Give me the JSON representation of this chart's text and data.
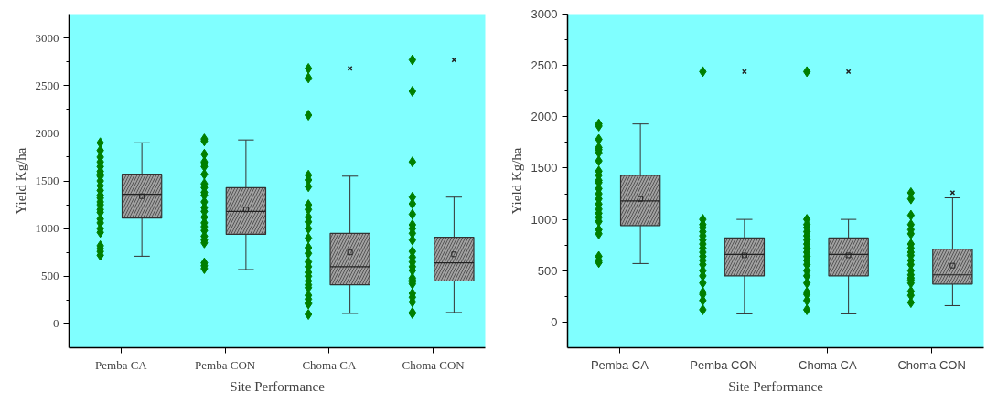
{
  "chart_data": [
    {
      "type": "box",
      "xlabel": "Site Performance",
      "ylabel": "Yield Kg/ha",
      "categories": [
        "Pemba CA",
        "Pemba CON",
        "Choma CA",
        "Choma CON"
      ],
      "ylim": [
        -250,
        3250
      ],
      "yticks": [
        0,
        500,
        1000,
        1500,
        2000,
        2500,
        3000
      ],
      "grid": false,
      "series": [
        {
          "color": "#a0a0a0",
          "boxes": [
            {
              "low": 710,
              "q1": 1110,
              "median": 1360,
              "q3": 1570,
              "high": 1900,
              "mean": 1340
            },
            {
              "low": 570,
              "q1": 940,
              "median": 1180,
              "q3": 1430,
              "high": 1930,
              "mean": 1200
            },
            {
              "low": 110,
              "q1": 410,
              "median": 600,
              "q3": 950,
              "high": 1550,
              "mean": 750,
              "outliers": [
                2680
              ]
            },
            {
              "low": 120,
              "q1": 450,
              "median": 640,
              "q3": 910,
              "high": 1330,
              "mean": 730,
              "outliers": [
                2770
              ]
            }
          ]
        },
        {
          "type": "scatter",
          "color": "#007f00",
          "marker": "diamond",
          "x": [
            "Pemba CA",
            "Pemba CA",
            "Pemba CA",
            "Pemba CA",
            "Pemba CA",
            "Pemba CA",
            "Pemba CA",
            "Pemba CA",
            "Pemba CA",
            "Pemba CA",
            "Pemba CA",
            "Pemba CA",
            "Pemba CA",
            "Pemba CA",
            "Pemba CA",
            "Pemba CA",
            "Pemba CA",
            "Pemba CA",
            "Pemba CA",
            "Pemba CA",
            "Pemba CA",
            "Pemba CA",
            "Pemba CA",
            "Pemba CA",
            "Pemba CA",
            "Pemba CON",
            "Pemba CON",
            "Pemba CON",
            "Pemba CON",
            "Pemba CON",
            "Pemba CON",
            "Pemba CON",
            "Pemba CON",
            "Pemba CON",
            "Pemba CON",
            "Pemba CON",
            "Pemba CON",
            "Pemba CON",
            "Pemba CON",
            "Pemba CON",
            "Pemba CON",
            "Pemba CON",
            "Pemba CON",
            "Pemba CON",
            "Pemba CON",
            "Pemba CON",
            "Pemba CON",
            "Pemba CON",
            "Pemba CON",
            "Choma CA",
            "Choma CA",
            "Choma CA",
            "Choma CA",
            "Choma CA",
            "Choma CA",
            "Choma CA",
            "Choma CA",
            "Choma CA",
            "Choma CA",
            "Choma CA",
            "Choma CA",
            "Choma CA",
            "Choma CA",
            "Choma CA",
            "Choma CA",
            "Choma CA",
            "Choma CA",
            "Choma CA",
            "Choma CA",
            "Choma CA",
            "Choma CA",
            "Choma CA",
            "Choma CA",
            "Choma CA",
            "Choma CA",
            "Choma CON",
            "Choma CON",
            "Choma CON",
            "Choma CON",
            "Choma CON",
            "Choma CON",
            "Choma CON",
            "Choma CON",
            "Choma CON",
            "Choma CON",
            "Choma CON",
            "Choma CON",
            "Choma CON",
            "Choma CON",
            "Choma CON",
            "Choma CON",
            "Choma CON",
            "Choma CON",
            "Choma CON",
            "Choma CON",
            "Choma CON",
            "Choma CON",
            "Choma CON",
            "Choma CON"
          ],
          "values": [
            1900,
            1820,
            1750,
            1700,
            1650,
            1600,
            1570,
            1550,
            1500,
            1450,
            1400,
            1350,
            1320,
            1280,
            1250,
            1200,
            1170,
            1100,
            1060,
            1000,
            960,
            820,
            790,
            760,
            720,
            1940,
            1920,
            1780,
            1700,
            1680,
            1650,
            1570,
            1470,
            1430,
            1380,
            1350,
            1280,
            1220,
            1180,
            1120,
            1060,
            1020,
            980,
            920,
            880,
            850,
            640,
            610,
            580,
            2680,
            2580,
            2190,
            1560,
            1510,
            1440,
            1250,
            1200,
            1120,
            1070,
            1000,
            900,
            800,
            740,
            650,
            600,
            540,
            500,
            450,
            410,
            380,
            300,
            260,
            220,
            210,
            100,
            2770,
            2440,
            1700,
            1330,
            1260,
            1150,
            1040,
            1000,
            950,
            880,
            760,
            700,
            650,
            600,
            560,
            480,
            460,
            440,
            420,
            320,
            280,
            230,
            120,
            110
          ]
        }
      ]
    },
    {
      "type": "box",
      "xlabel": "Site Performance",
      "ylabel": "Yield Kg/ha",
      "categories": [
        "Pemba CA",
        "Pemba CON",
        "Choma CA",
        "Choma CON"
      ],
      "ylim": [
        -250,
        3000
      ],
      "yticks": [
        0,
        500,
        1000,
        1500,
        2000,
        2500,
        3000
      ],
      "grid": false,
      "series": [
        {
          "color": "#a0a0a0",
          "boxes": [
            {
              "low": 570,
              "q1": 940,
              "median": 1180,
              "q3": 1430,
              "high": 1930,
              "mean": 1200
            },
            {
              "low": 80,
              "q1": 450,
              "median": 660,
              "q3": 820,
              "high": 1000,
              "mean": 650,
              "outliers": [
                2440
              ]
            },
            {
              "low": 80,
              "q1": 450,
              "median": 660,
              "q3": 820,
              "high": 1000,
              "mean": 650,
              "outliers": [
                2440
              ]
            },
            {
              "low": 160,
              "q1": 370,
              "median": 460,
              "q3": 710,
              "high": 1210,
              "mean": 550,
              "outliers": [
                1260
              ]
            }
          ]
        },
        {
          "type": "scatter",
          "color": "#007f00",
          "marker": "diamond",
          "x": [
            "Pemba CA",
            "Pemba CA",
            "Pemba CA",
            "Pemba CA",
            "Pemba CA",
            "Pemba CA",
            "Pemba CA",
            "Pemba CA",
            "Pemba CA",
            "Pemba CA",
            "Pemba CA",
            "Pemba CA",
            "Pemba CA",
            "Pemba CA",
            "Pemba CA",
            "Pemba CA",
            "Pemba CA",
            "Pemba CA",
            "Pemba CA",
            "Pemba CA",
            "Pemba CA",
            "Pemba CA",
            "Pemba CA",
            "Pemba CA",
            "Pemba CON",
            "Pemba CON",
            "Pemba CON",
            "Pemba CON",
            "Pemba CON",
            "Pemba CON",
            "Pemba CON",
            "Pemba CON",
            "Pemba CON",
            "Pemba CON",
            "Pemba CON",
            "Pemba CON",
            "Pemba CON",
            "Pemba CON",
            "Pemba CON",
            "Pemba CON",
            "Pemba CON",
            "Pemba CON",
            "Pemba CON",
            "Pemba CON",
            "Choma CA",
            "Choma CA",
            "Choma CA",
            "Choma CA",
            "Choma CA",
            "Choma CA",
            "Choma CA",
            "Choma CA",
            "Choma CA",
            "Choma CA",
            "Choma CA",
            "Choma CA",
            "Choma CA",
            "Choma CA",
            "Choma CA",
            "Choma CA",
            "Choma CA",
            "Choma CA",
            "Choma CA",
            "Choma CA",
            "Choma CON",
            "Choma CON",
            "Choma CON",
            "Choma CON",
            "Choma CON",
            "Choma CON",
            "Choma CON",
            "Choma CON",
            "Choma CON",
            "Choma CON",
            "Choma CON",
            "Choma CON",
            "Choma CON",
            "Choma CON",
            "Choma CON",
            "Choma CON",
            "Choma CON",
            "Choma CON",
            "Choma CON",
            "Choma CON"
          ],
          "values": [
            1930,
            1910,
            1780,
            1700,
            1680,
            1650,
            1570,
            1470,
            1430,
            1380,
            1360,
            1300,
            1250,
            1200,
            1150,
            1100,
            1060,
            1020,
            980,
            900,
            860,
            640,
            600,
            580,
            2440,
            1000,
            950,
            920,
            880,
            840,
            800,
            760,
            720,
            680,
            640,
            600,
            560,
            500,
            450,
            380,
            290,
            270,
            210,
            120,
            2440,
            1000,
            950,
            920,
            880,
            840,
            800,
            760,
            720,
            680,
            640,
            600,
            560,
            500,
            450,
            380,
            290,
            270,
            210,
            120,
            1260,
            1200,
            1040,
            950,
            900,
            860,
            760,
            720,
            680,
            650,
            600,
            560,
            500,
            460,
            430,
            410,
            380,
            300,
            260,
            190
          ]
        }
      ]
    }
  ]
}
